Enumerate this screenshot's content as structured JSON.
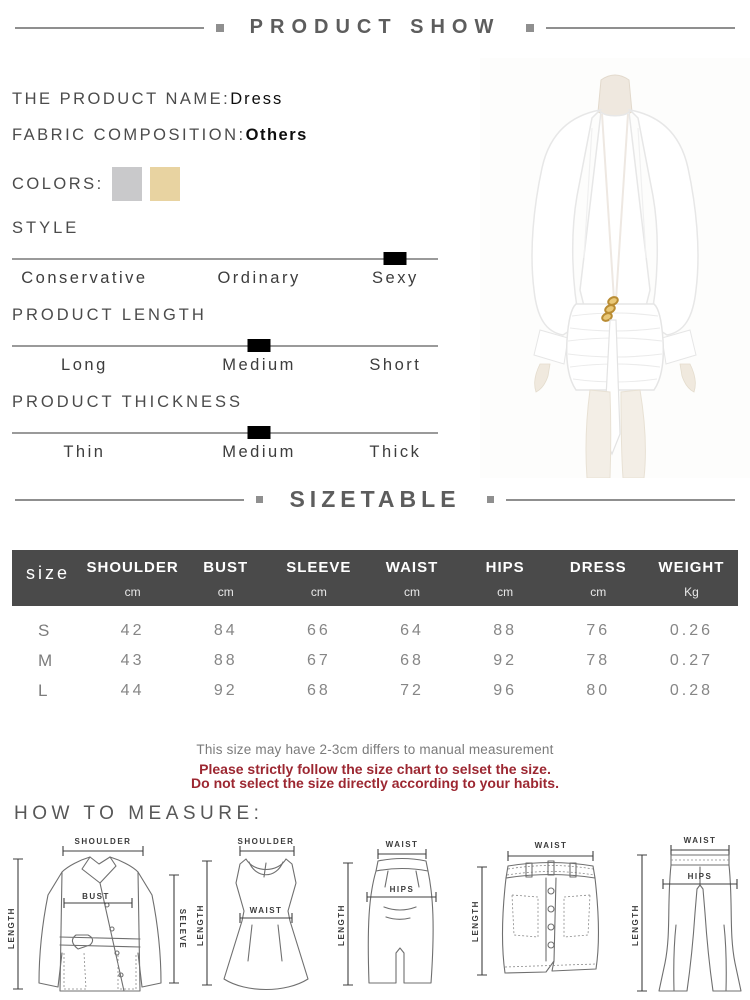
{
  "header": {
    "title": "PRODUCT SHOW"
  },
  "product": {
    "name_label": "THE PRODUCT NAME:",
    "name_value": "Dress",
    "fabric_label": "FABRIC COMPOSITION:",
    "fabric_value": "Others",
    "colors_label": "COLORS:",
    "colors": [
      "#c9c9cb",
      "#e8d3a1"
    ]
  },
  "attributes": [
    {
      "label": "STYLE",
      "options": [
        "Conservative",
        "Ordinary",
        "Sexy"
      ],
      "selected": "Sexy",
      "selected_index": 2
    },
    {
      "label": "PRODUCT LENGTH",
      "options": [
        "Long",
        "Medium",
        "Short"
      ],
      "selected": "Medium",
      "selected_index": 1
    },
    {
      "label": "PRODUCT THICKNESS",
      "options": [
        "Thin",
        "Medium",
        "Thick"
      ],
      "selected": "Medium",
      "selected_index": 1
    }
  ],
  "sizetable": {
    "title": "SIZETABLE",
    "columns": [
      "size",
      "SHOULDER",
      "BUST",
      "SLEEVE",
      "WAIST",
      "HIPS",
      "DRESS",
      "WEIGHT"
    ],
    "units": [
      "cm",
      "cm",
      "cm",
      "cm",
      "cm",
      "cm",
      "Kg"
    ],
    "rows": [
      {
        "size": "S",
        "values": [
          "42",
          "84",
          "66",
          "64",
          "88",
          "76",
          "0.26"
        ]
      },
      {
        "size": "M",
        "values": [
          "43",
          "88",
          "67",
          "68",
          "92",
          "78",
          "0.27"
        ]
      },
      {
        "size": "L",
        "values": [
          "44",
          "92",
          "68",
          "72",
          "96",
          "80",
          "0.28"
        ]
      }
    ]
  },
  "notes": {
    "measurement": "This size may have 2-3cm differs to manual measurement",
    "warning1": "Please strictly follow the size chart to selset the size.",
    "warning2": "Do not select the size directly according to your habits."
  },
  "measure": {
    "title": "HOW TO MEASURE:",
    "figures": [
      {
        "name": "jacket",
        "top": "SHOULDER",
        "left": "LENGTH",
        "mid": "BUST",
        "right": "SELEVE"
      },
      {
        "name": "dress",
        "top": "SHOULDER",
        "left": "LENGTH",
        "mid": "WAIST"
      },
      {
        "name": "midi-skirt",
        "top": "WAIST",
        "left": "LENGTH",
        "mid": "HIPS"
      },
      {
        "name": "mini-skirt",
        "top": "WAIST",
        "left": "LENGTH"
      },
      {
        "name": "pants",
        "top": "WAIST",
        "left": "LENGTH",
        "mid": "HIPS"
      }
    ]
  }
}
